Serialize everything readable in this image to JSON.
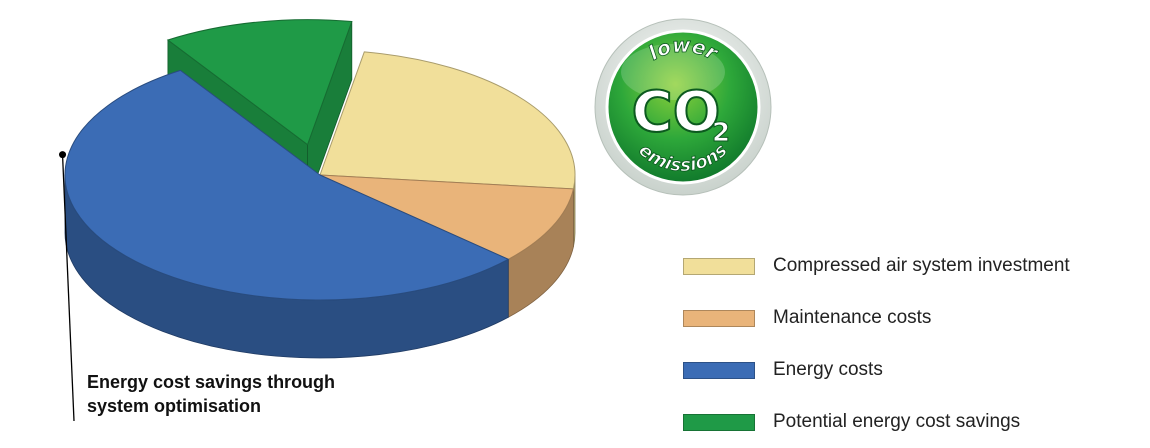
{
  "chart_data": {
    "type": "pie",
    "title": "",
    "slices": [
      {
        "label": "Compressed air system investment",
        "value": 24,
        "color": "#f1df9a"
      },
      {
        "label": "Maintenance costs",
        "value": 10,
        "color": "#e9b47a"
      },
      {
        "label": "Energy costs",
        "value": 54,
        "color": "#3b6cb5"
      },
      {
        "label": "Potential energy cost savings",
        "value": 12,
        "color": "#1f9a47"
      }
    ],
    "exploded": "Potential energy cost savings",
    "legend_position": "bottom-right",
    "annotation": {
      "line1": "Energy cost savings through",
      "line2": "system optimisation"
    }
  },
  "badge": {
    "top": "lower",
    "main": "CO",
    "sub": "2",
    "bottom": "emissions"
  }
}
